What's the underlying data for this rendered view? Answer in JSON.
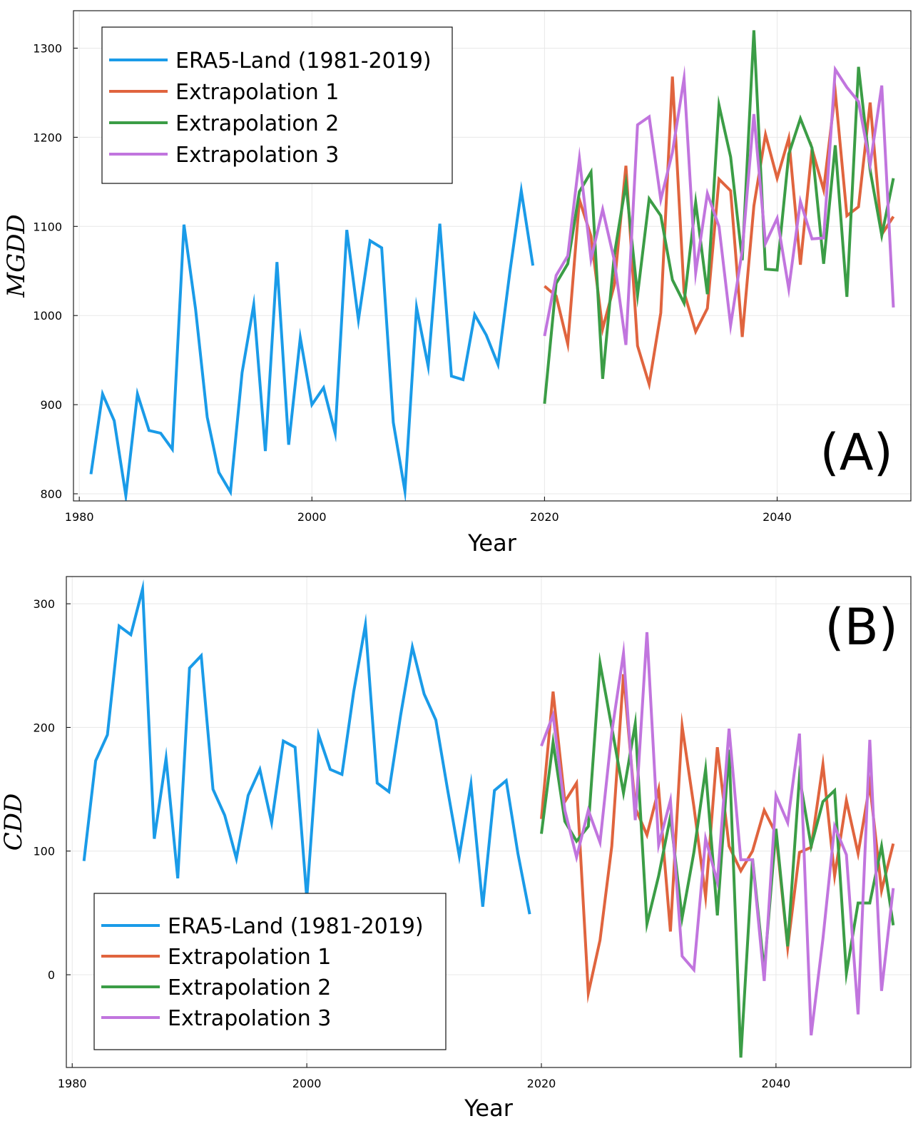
{
  "colors": {
    "era5": "#1a9be8",
    "ext1": "#e0643e",
    "ext2": "#3b9d46",
    "ext3": "#c175de",
    "grid": "#e8e8e8"
  },
  "chart_data": [
    {
      "type": "line",
      "panel_label": "(A)",
      "xlabel": "Year",
      "ylabel": "MGDD",
      "xlim": [
        1979.5,
        2051.5
      ],
      "ylim": [
        792,
        1342
      ],
      "xticks": [
        1980,
        2000,
        2020,
        2040
      ],
      "yticks": [
        800,
        900,
        1000,
        1100,
        1200,
        1300
      ],
      "grid": true,
      "legend_position": "top-left",
      "series": [
        {
          "name": "ERA5-Land (1981-2019)",
          "color_key": "era5",
          "x": [
            1981,
            1982,
            1983,
            1984,
            1985,
            1986,
            1987,
            1988,
            1989,
            1990,
            1991,
            1992,
            1993,
            1994,
            1995,
            1996,
            1997,
            1998,
            1999,
            2000,
            2001,
            2002,
            2003,
            2004,
            2005,
            2006,
            2007,
            2008,
            2009,
            2010,
            2011,
            2012,
            2013,
            2014,
            2015,
            2016,
            2017,
            2018,
            2019
          ],
          "y": [
            822,
            912,
            882,
            798,
            912,
            871,
            868,
            850,
            1102,
            1007,
            886,
            824,
            802,
            936,
            1012,
            848,
            1060,
            855,
            975,
            900,
            919,
            868,
            1096,
            995,
            1084,
            1076,
            880,
            803,
            1009,
            943,
            1103,
            932,
            928,
            1001,
            978,
            945,
            1047,
            1140,
            1056
          ]
        },
        {
          "name": "Extrapolation 1",
          "color_key": "ext1",
          "x": [
            2020,
            2021,
            2022,
            2023,
            2024,
            2025,
            2026,
            2027,
            2028,
            2029,
            2030,
            2031,
            2032,
            2033,
            2034,
            2035,
            2036,
            2037,
            2038,
            2039,
            2040,
            2041,
            2042,
            2043,
            2044,
            2045,
            2046,
            2047,
            2048,
            2049,
            2050
          ],
          "y": [
            1033,
            1022,
            968,
            1130,
            1089,
            985,
            1034,
            1168,
            966,
            923,
            1003,
            1268,
            1026,
            982,
            1008,
            1153,
            1140,
            976,
            1123,
            1203,
            1154,
            1199,
            1057,
            1187,
            1141,
            1251,
            1112,
            1122,
            1239,
            1091,
            1111
          ]
        },
        {
          "name": "Extrapolation 2",
          "color_key": "ext2",
          "x": [
            2020,
            2021,
            2022,
            2023,
            2024,
            2025,
            2026,
            2027,
            2028,
            2029,
            2030,
            2031,
            2032,
            2033,
            2034,
            2035,
            2036,
            2037,
            2038,
            2039,
            2040,
            2041,
            2042,
            2043,
            2044,
            2045,
            2046,
            2047,
            2048,
            2049,
            2050
          ],
          "y": [
            901,
            1036,
            1058,
            1139,
            1161,
            929,
            1068,
            1148,
            1023,
            1131,
            1112,
            1040,
            1014,
            1127,
            1024,
            1236,
            1178,
            1062,
            1320,
            1052,
            1051,
            1181,
            1221,
            1188,
            1058,
            1191,
            1021,
            1279,
            1163,
            1090,
            1154
          ]
        },
        {
          "name": "Extrapolation 3",
          "color_key": "ext3",
          "x": [
            2020,
            2021,
            2022,
            2023,
            2024,
            2025,
            2026,
            2027,
            2028,
            2029,
            2030,
            2031,
            2032,
            2033,
            2034,
            2035,
            2036,
            2037,
            2038,
            2039,
            2040,
            2041,
            2042,
            2043,
            2044,
            2045,
            2046,
            2047,
            2048,
            2049,
            2050
          ],
          "y": [
            977,
            1045,
            1067,
            1176,
            1063,
            1119,
            1062,
            967,
            1214,
            1223,
            1130,
            1183,
            1266,
            1048,
            1137,
            1100,
            989,
            1073,
            1226,
            1081,
            1109,
            1030,
            1128,
            1086,
            1087,
            1276,
            1256,
            1240,
            1169,
            1258,
            1009
          ]
        }
      ]
    },
    {
      "type": "line",
      "panel_label": "(B)",
      "xlabel": "Year",
      "ylabel": "CDD",
      "xlim": [
        1979.5,
        2051.5
      ],
      "ylim": [
        -75,
        322
      ],
      "xticks": [
        1980,
        2000,
        2020,
        2040
      ],
      "yticks": [
        0,
        100,
        200,
        300
      ],
      "grid": true,
      "legend_position": "bottom-left",
      "series": [
        {
          "name": "ERA5-Land (1981-2019)",
          "color_key": "era5",
          "x": [
            1981,
            1982,
            1983,
            1984,
            1985,
            1986,
            1987,
            1988,
            1989,
            1990,
            1991,
            1992,
            1993,
            1994,
            1995,
            1996,
            1997,
            1998,
            1999,
            2000,
            2001,
            2002,
            2003,
            2004,
            2005,
            2006,
            2007,
            2008,
            2009,
            2010,
            2011,
            2012,
            2013,
            2014,
            2015,
            2016,
            2017,
            2018,
            2019
          ],
          "y": [
            92,
            173,
            194,
            282,
            275,
            312,
            110,
            175,
            78,
            248,
            258,
            150,
            129,
            94,
            145,
            166,
            123,
            189,
            184,
            62,
            194,
            166,
            162,
            229,
            283,
            155,
            148,
            210,
            265,
            227,
            206,
            150,
            96,
            154,
            55,
            149,
            157,
            98,
            49
          ]
        },
        {
          "name": "Extrapolation 1",
          "color_key": "ext1",
          "x": [
            2020,
            2021,
            2022,
            2023,
            2024,
            2025,
            2026,
            2027,
            2028,
            2029,
            2030,
            2031,
            2032,
            2033,
            2034,
            2035,
            2036,
            2037,
            2038,
            2039,
            2040,
            2041,
            2042,
            2043,
            2044,
            2045,
            2046,
            2047,
            2048,
            2049,
            2050
          ],
          "y": [
            126,
            229,
            140,
            155,
            -15,
            28,
            104,
            243,
            135,
            113,
            150,
            35,
            201,
            136,
            63,
            184,
            104,
            84,
            100,
            133,
            114,
            22,
            99,
            103,
            170,
            80,
            141,
            98,
            154,
            68,
            106
          ]
        },
        {
          "name": "Extrapolation 2",
          "color_key": "ext2",
          "x": [
            2020,
            2021,
            2022,
            2023,
            2024,
            2025,
            2026,
            2027,
            2028,
            2029,
            2030,
            2031,
            2032,
            2033,
            2034,
            2035,
            2036,
            2037,
            2038,
            2039,
            2040,
            2041,
            2042,
            2043,
            2044,
            2045,
            2046,
            2047,
            2048,
            2049,
            2050
          ],
          "y": [
            114,
            188,
            124,
            108,
            120,
            252,
            200,
            147,
            203,
            41,
            80,
            128,
            46,
            99,
            166,
            48,
            182,
            -67,
            94,
            3,
            118,
            23,
            160,
            104,
            140,
            149,
            1,
            58,
            58,
            104,
            40
          ]
        },
        {
          "name": "Extrapolation 3",
          "color_key": "ext3",
          "x": [
            2020,
            2021,
            2022,
            2023,
            2024,
            2025,
            2026,
            2027,
            2028,
            2029,
            2030,
            2031,
            2032,
            2033,
            2034,
            2035,
            2036,
            2037,
            2038,
            2039,
            2040,
            2041,
            2042,
            2043,
            2044,
            2045,
            2046,
            2047,
            2048,
            2049,
            2050
          ],
          "y": [
            185,
            210,
            133,
            95,
            133,
            107,
            196,
            260,
            125,
            277,
            105,
            141,
            15,
            4,
            110,
            75,
            199,
            93,
            93,
            -5,
            145,
            123,
            195,
            -49,
            29,
            120,
            97,
            -32,
            190,
            -13,
            70
          ]
        }
      ]
    }
  ]
}
